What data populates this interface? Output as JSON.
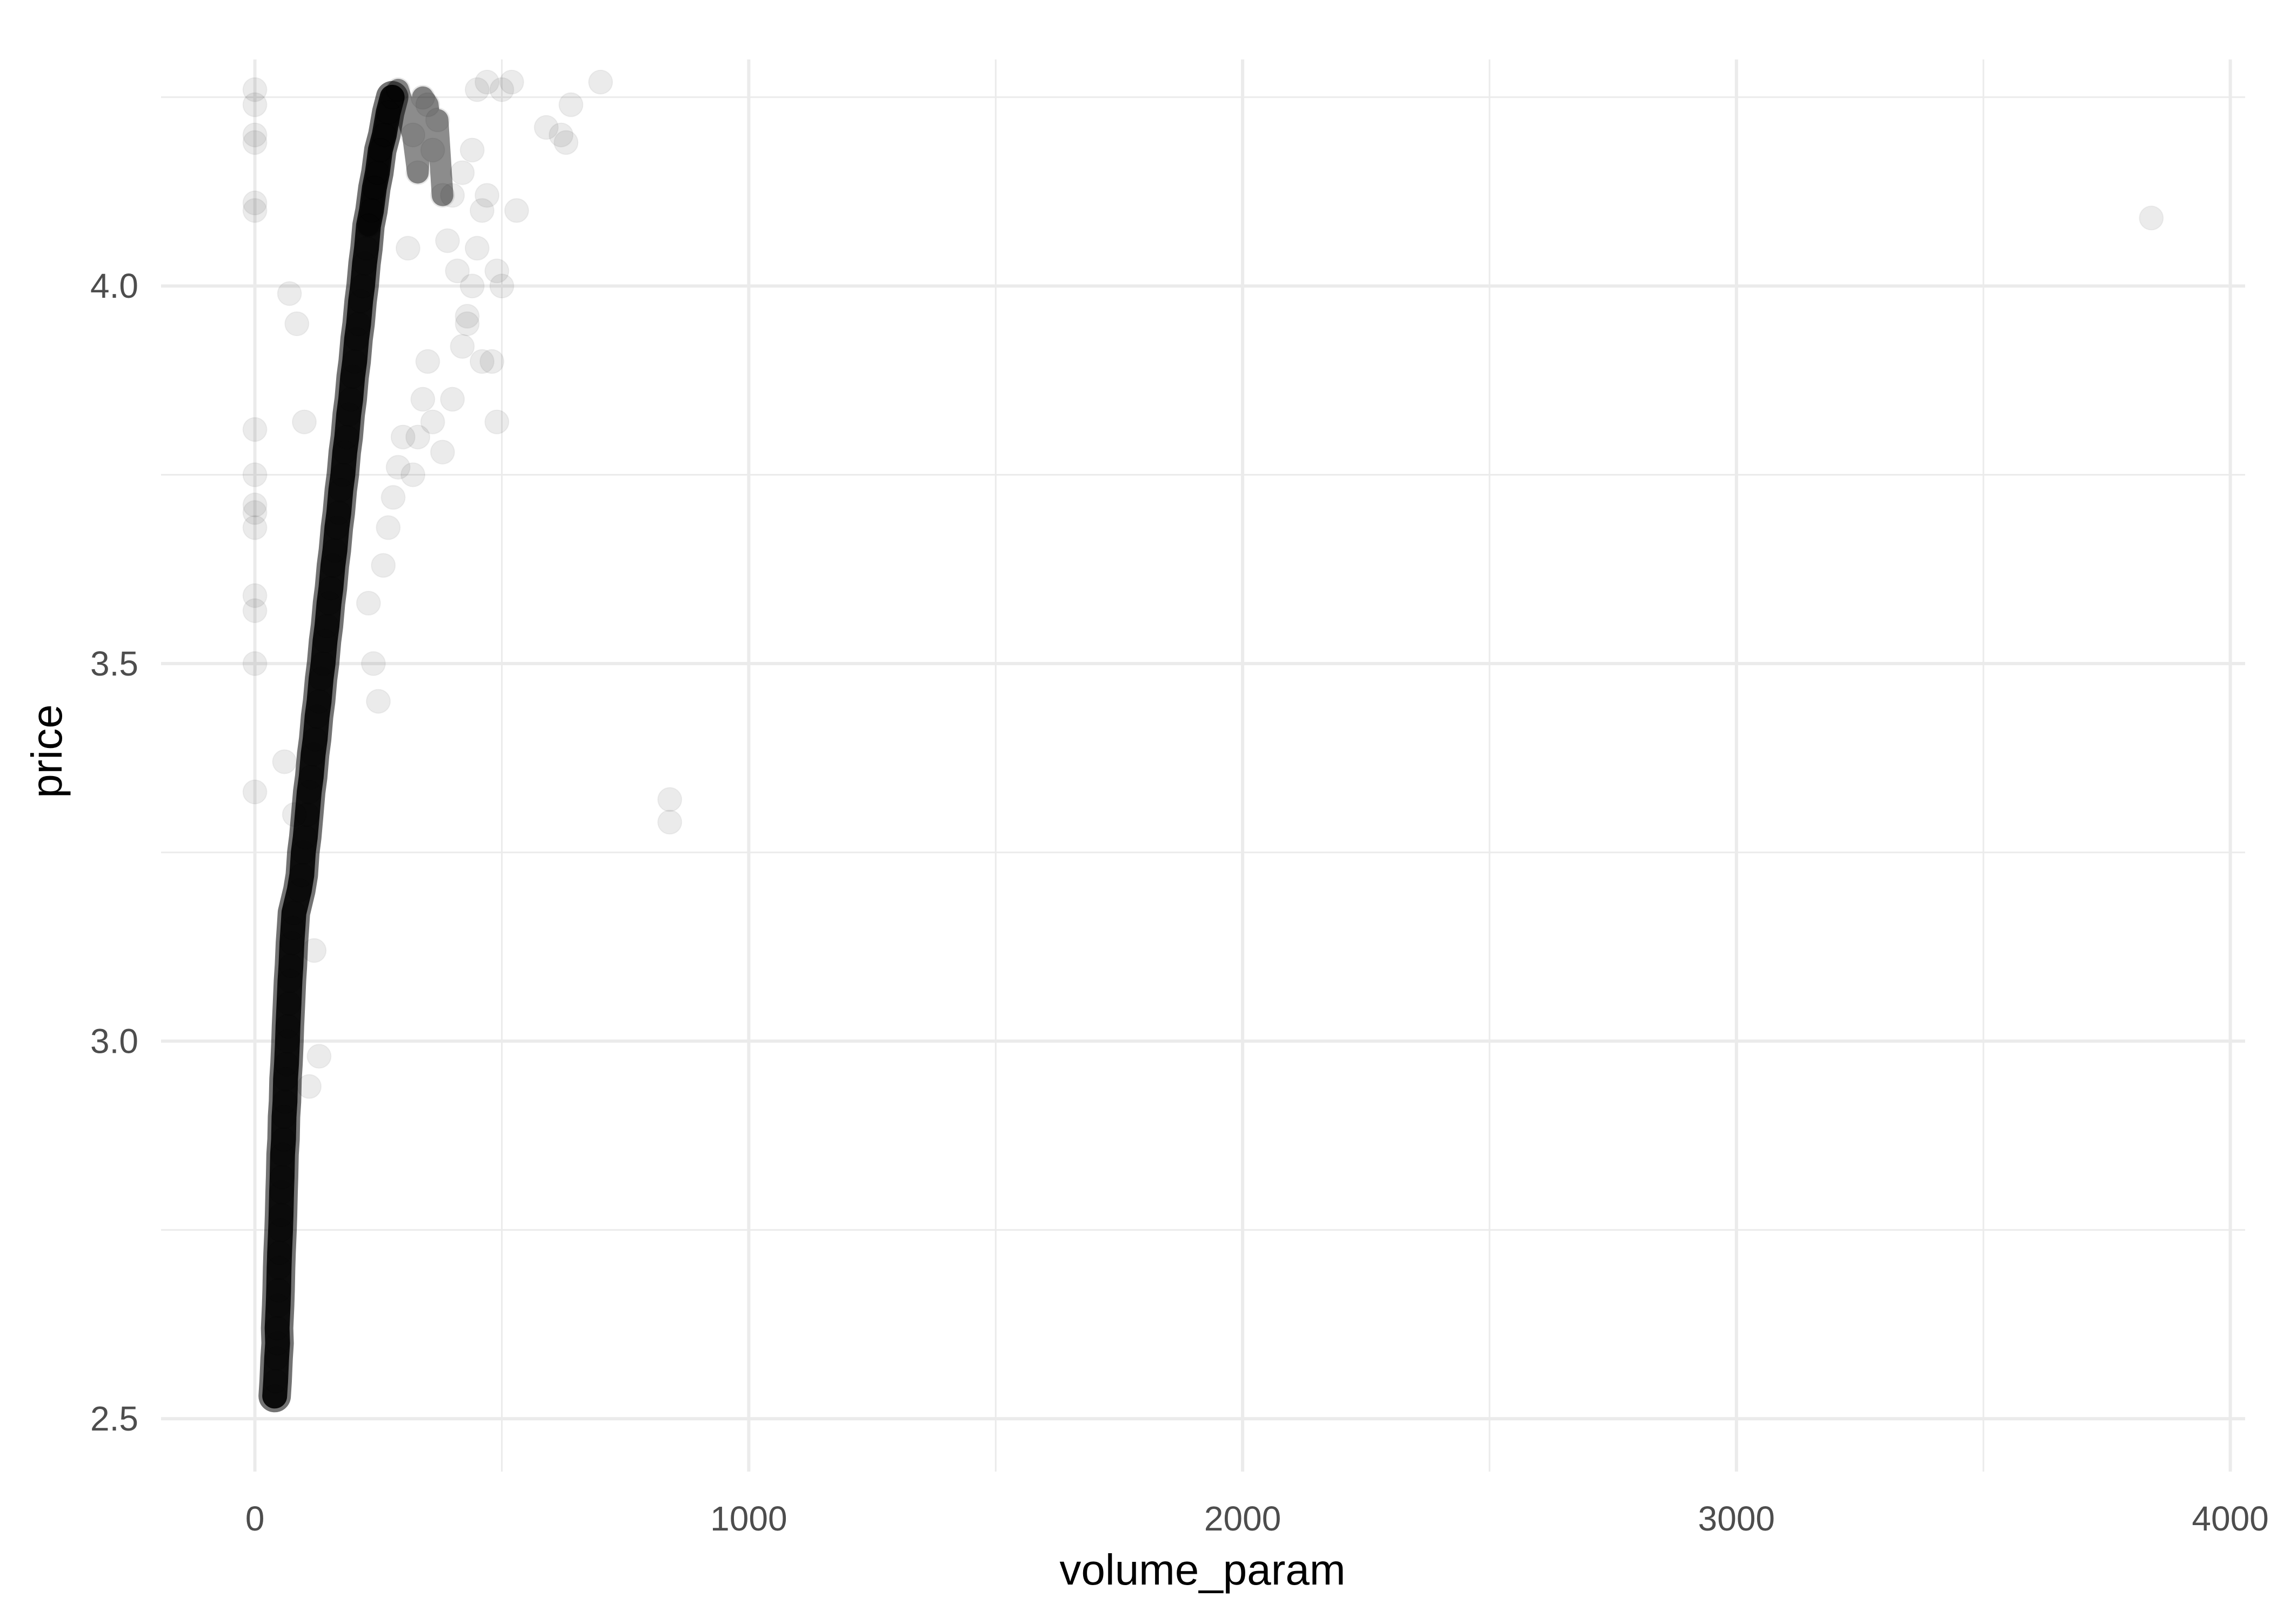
{
  "chart_data": {
    "type": "scatter",
    "title": "",
    "xlabel": "volume_param",
    "ylabel": "price",
    "xlim": [
      -190,
      4030
    ],
    "ylim": [
      2.43,
      4.3
    ],
    "x_ticks": [
      0,
      1000,
      2000,
      3000,
      4000
    ],
    "x_tick_labels": [
      "0",
      "1000",
      "2000",
      "3000",
      "4000"
    ],
    "y_ticks": [
      2.5,
      3.0,
      3.5,
      4.0
    ],
    "y_tick_labels": [
      "2.5",
      "3.0",
      "3.5",
      "4.0"
    ],
    "grid": true,
    "legend": "none",
    "point_color": "#000000",
    "point_alpha": 0.08,
    "series": [
      {
        "points": [
          [
            40,
            2.53
          ],
          [
            42,
            2.55
          ],
          [
            44,
            2.58
          ],
          [
            46,
            2.6
          ],
          [
            45,
            2.62
          ],
          [
            47,
            2.65
          ],
          [
            48,
            2.67
          ],
          [
            49,
            2.7
          ],
          [
            50,
            2.72
          ],
          [
            52,
            2.75
          ],
          [
            53,
            2.77
          ],
          [
            54,
            2.8
          ],
          [
            55,
            2.82
          ],
          [
            56,
            2.85
          ],
          [
            58,
            2.87
          ],
          [
            59,
            2.9
          ],
          [
            61,
            2.92
          ],
          [
            62,
            2.95
          ],
          [
            64,
            2.97
          ],
          [
            66,
            3.0
          ],
          [
            67,
            3.02
          ],
          [
            69,
            3.05
          ],
          [
            71,
            3.08
          ],
          [
            73,
            3.1
          ],
          [
            75,
            3.13
          ],
          [
            77,
            3.15
          ],
          [
            79,
            3.17
          ],
          [
            90,
            3.2
          ],
          [
            95,
            3.22
          ],
          [
            98,
            3.25
          ],
          [
            102,
            3.27
          ],
          [
            106,
            3.3
          ],
          [
            110,
            3.33
          ],
          [
            114,
            3.35
          ],
          [
            118,
            3.38
          ],
          [
            122,
            3.4
          ],
          [
            126,
            3.43
          ],
          [
            130,
            3.45
          ],
          [
            134,
            3.48
          ],
          [
            138,
            3.5
          ],
          [
            142,
            3.53
          ],
          [
            146,
            3.55
          ],
          [
            150,
            3.58
          ],
          [
            154,
            3.6
          ],
          [
            158,
            3.63
          ],
          [
            162,
            3.65
          ],
          [
            166,
            3.68
          ],
          [
            170,
            3.7
          ],
          [
            174,
            3.73
          ],
          [
            178,
            3.75
          ],
          [
            182,
            3.78
          ],
          [
            186,
            3.8
          ],
          [
            190,
            3.83
          ],
          [
            194,
            3.85
          ],
          [
            198,
            3.88
          ],
          [
            202,
            3.9
          ],
          [
            206,
            3.93
          ],
          [
            210,
            3.95
          ],
          [
            214,
            3.98
          ],
          [
            218,
            4.0
          ],
          [
            222,
            4.03
          ],
          [
            226,
            4.05
          ],
          [
            230,
            4.08
          ],
          [
            236,
            4.1
          ],
          [
            242,
            4.13
          ],
          [
            248,
            4.15
          ],
          [
            254,
            4.18
          ],
          [
            262,
            4.2
          ],
          [
            270,
            4.23
          ],
          [
            278,
            4.25
          ],
          [
            290,
            4.26
          ],
          [
            320,
            4.2
          ],
          [
            330,
            4.15
          ],
          [
            340,
            4.25
          ],
          [
            350,
            4.24
          ],
          [
            360,
            4.18
          ],
          [
            370,
            4.22
          ],
          [
            380,
            4.12
          ],
          [
            310,
            4.05
          ],
          [
            0,
            4.26
          ],
          [
            0,
            4.24
          ],
          [
            0,
            4.2
          ],
          [
            0,
            4.19
          ],
          [
            0,
            4.11
          ],
          [
            0,
            4.1
          ],
          [
            0,
            3.81
          ],
          [
            0,
            3.75
          ],
          [
            0,
            3.71
          ],
          [
            0,
            3.7
          ],
          [
            0,
            3.68
          ],
          [
            0,
            3.59
          ],
          [
            0,
            3.57
          ],
          [
            0,
            3.5
          ],
          [
            0,
            3.33
          ],
          [
            70,
            3.99
          ],
          [
            85,
            3.95
          ],
          [
            100,
            3.82
          ],
          [
            60,
            3.37
          ],
          [
            80,
            3.3
          ],
          [
            120,
            3.12
          ],
          [
            130,
            2.98
          ],
          [
            110,
            2.94
          ],
          [
            230,
            3.58
          ],
          [
            240,
            3.5
          ],
          [
            250,
            3.45
          ],
          [
            260,
            3.63
          ],
          [
            270,
            3.68
          ],
          [
            280,
            3.72
          ],
          [
            290,
            3.76
          ],
          [
            300,
            3.8
          ],
          [
            320,
            3.75
          ],
          [
            330,
            3.8
          ],
          [
            340,
            3.85
          ],
          [
            350,
            3.9
          ],
          [
            360,
            3.82
          ],
          [
            380,
            3.78
          ],
          [
            400,
            3.85
          ],
          [
            420,
            3.92
          ],
          [
            430,
            3.95
          ],
          [
            440,
            4.0
          ],
          [
            450,
            4.05
          ],
          [
            460,
            4.1
          ],
          [
            470,
            4.12
          ],
          [
            480,
            3.9
          ],
          [
            490,
            3.82
          ],
          [
            500,
            4.0
          ],
          [
            490,
            4.02
          ],
          [
            460,
            3.9
          ],
          [
            430,
            3.96
          ],
          [
            410,
            4.02
          ],
          [
            390,
            4.06
          ],
          [
            400,
            4.12
          ],
          [
            420,
            4.15
          ],
          [
            440,
            4.18
          ],
          [
            450,
            4.26
          ],
          [
            470,
            4.27
          ],
          [
            500,
            4.26
          ],
          [
            520,
            4.27
          ],
          [
            530,
            4.1
          ],
          [
            590,
            4.21
          ],
          [
            620,
            4.2
          ],
          [
            630,
            4.19
          ],
          [
            640,
            4.24
          ],
          [
            700,
            4.27
          ],
          [
            840,
            3.32
          ],
          [
            840,
            3.29
          ],
          [
            3840,
            4.09
          ]
        ]
      }
    ]
  }
}
